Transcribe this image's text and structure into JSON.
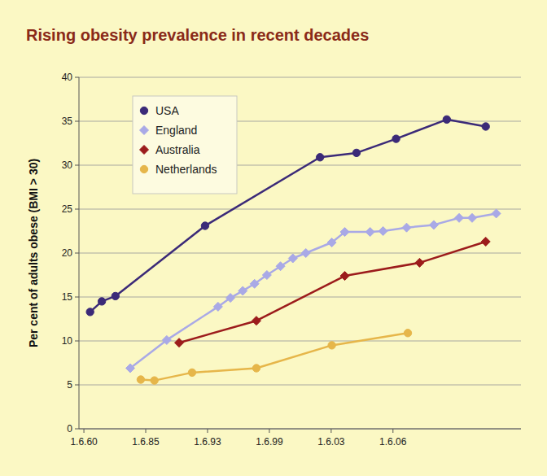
{
  "chart_data": {
    "type": "line",
    "title": "Rising obesity prevalence in recent decades",
    "y_label": "Per cent of adults obese (BMI > 30)",
    "xlim": [
      -0.08,
      7.07
    ],
    "xticks": [
      {
        "value": 0,
        "label": "1.6.60"
      },
      {
        "value": 1,
        "label": "1.6.85"
      },
      {
        "value": 2,
        "label": "1.6.93"
      },
      {
        "value": 3,
        "label": "1.6.99"
      },
      {
        "value": 4,
        "label": "1.6.03"
      },
      {
        "value": 5,
        "label": "1.6.06"
      }
    ],
    "ylim": [
      0,
      40
    ],
    "yticks": [
      0,
      5,
      10,
      15,
      20,
      25,
      30,
      35,
      40
    ],
    "grid": true,
    "legend": "upper left",
    "series": [
      {
        "name": "USA",
        "color": "#3b2a78",
        "marker": "circle",
        "x": [
          0.1,
          0.29,
          0.51,
          1.96,
          3.82,
          4.41,
          5.05,
          5.87,
          6.5
        ],
        "values": [
          13.3,
          14.5,
          15.1,
          23.1,
          30.9,
          31.4,
          33.0,
          35.2,
          34.4
        ]
      },
      {
        "name": "England",
        "color": "#a9a9e6",
        "marker": "diamond",
        "x": [
          0.75,
          1.34,
          2.17,
          2.37,
          2.57,
          2.76,
          2.96,
          3.18,
          3.38,
          3.59,
          4.01,
          4.22,
          4.63,
          4.84,
          5.22,
          5.66,
          6.07,
          6.28,
          6.67
        ],
        "values": [
          6.9,
          10.1,
          13.9,
          14.9,
          15.7,
          16.5,
          17.5,
          18.5,
          19.4,
          20.0,
          21.2,
          22.4,
          22.4,
          22.5,
          22.9,
          23.2,
          24.0,
          24.0,
          24.5
        ]
      },
      {
        "name": "Australia",
        "color": "#9c1c1c",
        "marker": "diamond",
        "x": [
          1.54,
          2.79,
          4.22,
          5.43,
          6.5
        ],
        "values": [
          9.8,
          12.3,
          17.4,
          18.9,
          21.3
        ]
      },
      {
        "name": "Netherlands",
        "color": "#e6b64a",
        "marker": "circle",
        "x": [
          0.92,
          1.14,
          1.75,
          2.79,
          4.01,
          5.24
        ],
        "values": [
          5.6,
          5.5,
          6.4,
          6.9,
          9.5,
          10.9
        ]
      }
    ]
  }
}
